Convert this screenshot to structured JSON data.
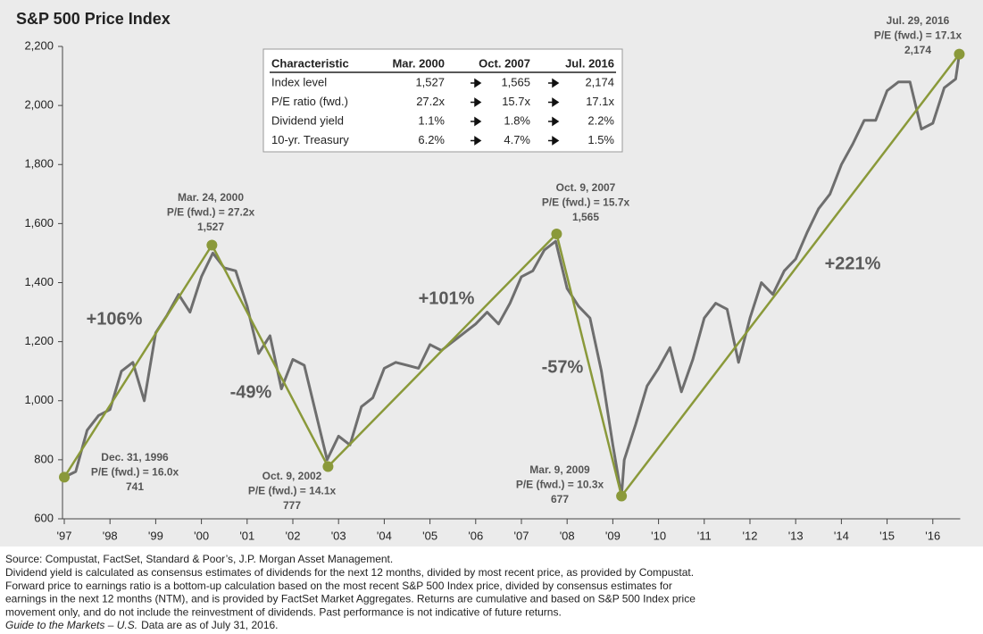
{
  "chart_data": {
    "type": "line",
    "title": "S&P 500 Price Index",
    "xlim": [
      1997,
      2016.6
    ],
    "ylim": [
      600,
      2200
    ],
    "xticks": [
      {
        "value": 1997,
        "label": "'97"
      },
      {
        "value": 1998,
        "label": "'98"
      },
      {
        "value": 1999,
        "label": "'99"
      },
      {
        "value": 2000,
        "label": "'00"
      },
      {
        "value": 2001,
        "label": "'01"
      },
      {
        "value": 2002,
        "label": "'02"
      },
      {
        "value": 2003,
        "label": "'03"
      },
      {
        "value": 2004,
        "label": "'04"
      },
      {
        "value": 2005,
        "label": "'05"
      },
      {
        "value": 2006,
        "label": "'06"
      },
      {
        "value": 2007,
        "label": "'07"
      },
      {
        "value": 2008,
        "label": "'08"
      },
      {
        "value": 2009,
        "label": "'09"
      },
      {
        "value": 2010,
        "label": "'10"
      },
      {
        "value": 2011,
        "label": "'11"
      },
      {
        "value": 2012,
        "label": "'12"
      },
      {
        "value": 2013,
        "label": "'13"
      },
      {
        "value": 2014,
        "label": "'14"
      },
      {
        "value": 2015,
        "label": "'15"
      },
      {
        "value": 2016,
        "label": "'16"
      }
    ],
    "yticks": [
      600,
      800,
      {
        "value": 1000,
        "label": "1,000"
      },
      {
        "value": 1200,
        "label": "1,200"
      },
      {
        "value": 1400,
        "label": "1,400"
      },
      {
        "value": 1600,
        "label": "1,600"
      },
      {
        "value": 1800,
        "label": "1,800"
      },
      {
        "value": 2000,
        "label": "2,000"
      },
      {
        "value": 2200,
        "label": "2,200"
      }
    ],
    "price": {
      "color": "#6e6e6e",
      "x": [
        1997,
        1997.25,
        1997.5,
        1997.75,
        1998,
        1998.25,
        1998.5,
        1998.75,
        1999,
        1999.25,
        1999.5,
        1999.75,
        2000,
        2000.25,
        2000.5,
        2000.75,
        2001,
        2001.25,
        2001.5,
        2001.75,
        2002,
        2002.25,
        2002.5,
        2002.75,
        2003,
        2003.25,
        2003.5,
        2003.75,
        2004,
        2004.25,
        2004.5,
        2004.75,
        2005,
        2005.25,
        2005.5,
        2005.75,
        2006,
        2006.25,
        2006.5,
        2006.75,
        2007,
        2007.25,
        2007.5,
        2007.75,
        2008,
        2008.25,
        2008.5,
        2008.75,
        2009,
        2009.19,
        2009.25,
        2009.5,
        2009.75,
        2010,
        2010.25,
        2010.5,
        2010.75,
        2011,
        2011.25,
        2011.5,
        2011.75,
        2012,
        2012.25,
        2012.5,
        2012.75,
        2013,
        2013.25,
        2013.5,
        2013.75,
        2014,
        2014.25,
        2014.5,
        2014.75,
        2015,
        2015.25,
        2015.5,
        2015.75,
        2016,
        2016.25,
        2016.5,
        2016.58
      ],
      "values": [
        741,
        760,
        900,
        950,
        970,
        1100,
        1130,
        1000,
        1230,
        1290,
        1360,
        1300,
        1420,
        1500,
        1450,
        1440,
        1320,
        1160,
        1220,
        1040,
        1140,
        1120,
        960,
        800,
        880,
        850,
        980,
        1010,
        1110,
        1130,
        1120,
        1110,
        1190,
        1170,
        1200,
        1230,
        1260,
        1300,
        1260,
        1330,
        1420,
        1440,
        1510,
        1540,
        1380,
        1320,
        1280,
        1100,
        850,
        677,
        800,
        920,
        1050,
        1110,
        1180,
        1030,
        1140,
        1280,
        1330,
        1310,
        1130,
        1280,
        1400,
        1360,
        1440,
        1480,
        1570,
        1650,
        1700,
        1800,
        1870,
        1950,
        1950,
        2050,
        2080,
        2080,
        1920,
        1940,
        2060,
        2090,
        2174
      ]
    },
    "trend": {
      "color": "#8a993a",
      "x": [
        1997,
        2000.23,
        2002.77,
        2007.77,
        2009.19,
        2016.58
      ],
      "values": [
        741,
        1527,
        777,
        1565,
        677,
        2174
      ],
      "value_labels": [
        "741",
        "1,527",
        "777",
        "1,565",
        "677",
        "2,174"
      ],
      "point_labels": [
        [
          "Dec. 31, 1996",
          "P/E (fwd.) = 16.0x"
        ],
        [
          "Mar. 24, 2000",
          "P/E (fwd.) = 27.2x"
        ],
        [
          "Oct. 9, 2002",
          "P/E (fwd.) = 14.1x"
        ],
        [
          "Oct. 9, 2007",
          "P/E (fwd.) = 15.7x"
        ],
        [
          "Mar. 9, 2009",
          "P/E (fwd.) = 10.3x"
        ],
        [
          "Jul. 29, 2016",
          "P/E (fwd.) = 17.1x"
        ]
      ]
    },
    "annotations": [
      "+106%",
      "-49%",
      "+101%",
      "-57%",
      "+221%"
    ],
    "table": {
      "header": [
        "Characteristic",
        "Mar. 2000",
        "Oct. 2007",
        "Jul. 2016"
      ],
      "rows": [
        [
          "Index level",
          "1,527",
          "1,565",
          "2,174"
        ],
        [
          "P/E ratio (fwd.)",
          "27.2x",
          "15.7x",
          "17.1x"
        ],
        [
          "Dividend yield",
          "1.1%",
          "1.8%",
          "2.2%"
        ],
        [
          "10-yr. Treasury",
          "6.2%",
          "4.7%",
          "1.5%"
        ]
      ]
    },
    "footnotes": [
      "Source: Compustat, FactSet, Standard & Poor’s, J.P. Morgan Asset Management.",
      "Dividend yield is calculated as consensus estimates of dividends for the next 12 months, divided by most recent price, as provided by Compustat.",
      "Forward price to earnings ratio is a bottom-up calculation based on the most recent S&P 500 Index price, divided by consensus estimates for",
      "earnings in the next 12 months (NTM), and is provided by FactSet Market Aggregates. Returns are cumulative and based on S&P 500 Index price",
      "movement only, and do not include the reinvestment of dividends. Past performance is not indicative of future returns."
    ],
    "guide": "Guide to the Markets – U.S.",
    "as_of": "Data are as of July 31, 2016."
  }
}
